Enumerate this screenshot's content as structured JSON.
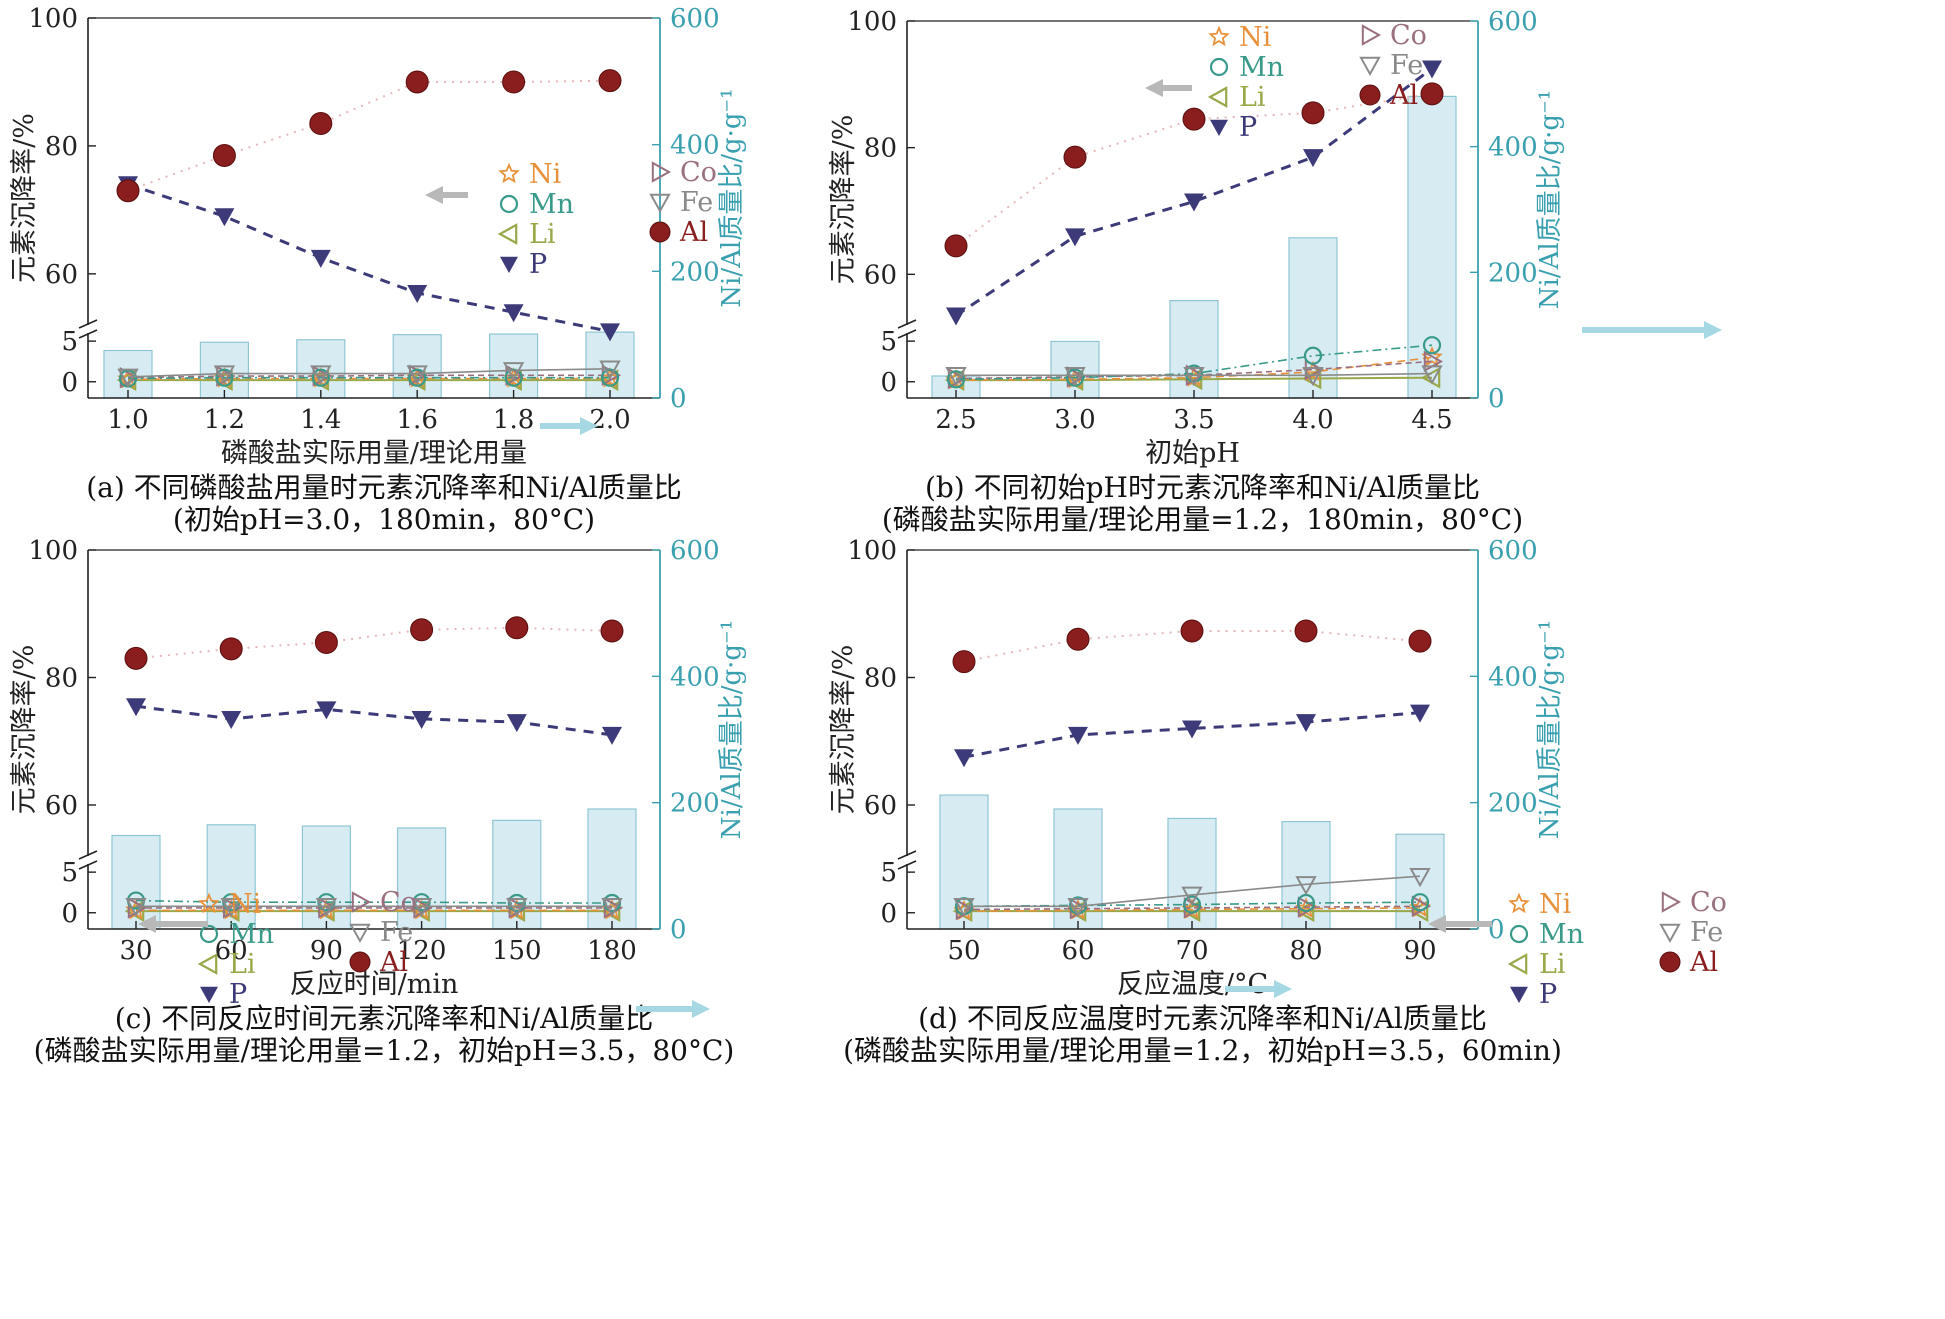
{
  "figure": {
    "colors": {
      "Ni": "#e8913a",
      "Mn": "#3a9a8a",
      "Li": "#9aa84a",
      "P": "#3c3a78",
      "Co": "#9a7080",
      "Fe": "#8a8a8a",
      "Al": "#8a1e1e",
      "bar_fill": "#d7ecf2",
      "bar_stroke": "#8fc6d4",
      "axis": "#222222",
      "right_axis": "#3aa0b0"
    },
    "legend_labels": [
      "Ni",
      "Mn",
      "Li",
      "P",
      "Co",
      "Fe",
      "Al"
    ]
  },
  "chart_data": [
    {
      "panel": "a",
      "type": "line+bar",
      "xlabel": "磷酸盐实际用量/理论用量",
      "ylabel": "元素沉降率/%",
      "ylabel_right": "Ni/Al质量比/g·g⁻¹",
      "caption1": "(a) 不同磷酸盐用量时元素沉降率和Ni/Al质量比",
      "caption2": "(初始pH=3.0，180min，80°C)",
      "x_tick_labels": [
        "1.0",
        "1.2",
        "1.4",
        "1.6",
        "1.8",
        "2.0"
      ],
      "y_ticks_upper": [
        60,
        80,
        100
      ],
      "y_ticks_lower": [
        0,
        5
      ],
      "y_ticks_right": [
        0,
        200,
        400,
        600
      ],
      "ylim_upper": [
        52,
        100
      ],
      "ylim_lower": [
        -2,
        6
      ],
      "ylim_right": [
        0,
        600
      ],
      "series": [
        {
          "name": "Al",
          "values": [
            73.0,
            78.5,
            83.5,
            90.0,
            90.0,
            90.2
          ]
        },
        {
          "name": "P",
          "values": [
            74.0,
            69.0,
            62.5,
            57.0,
            54.0,
            51.0
          ]
        },
        {
          "name": "Ni",
          "values": [
            0.3,
            0.4,
            0.4,
            0.4,
            0.4,
            0.4
          ]
        },
        {
          "name": "Mn",
          "values": [
            0.4,
            0.5,
            0.5,
            0.5,
            0.5,
            0.5
          ]
        },
        {
          "name": "Li",
          "values": [
            0.2,
            0.2,
            0.2,
            0.2,
            0.2,
            0.2
          ]
        },
        {
          "name": "Co",
          "values": [
            0.5,
            0.7,
            0.7,
            0.8,
            0.8,
            0.8
          ]
        },
        {
          "name": "Fe",
          "values": [
            0.6,
            1.0,
            1.0,
            1.0,
            1.4,
            1.6
          ]
        }
      ],
      "bars": [
        75,
        88,
        92,
        100,
        101,
        104
      ]
    },
    {
      "panel": "b",
      "type": "line+bar",
      "xlabel": "初始pH",
      "ylabel": "元素沉降率/%",
      "ylabel_right": "Ni/Al质量比/g·g⁻¹",
      "caption1": "(b) 不同初始pH时元素沉降率和Ni/Al质量比",
      "caption2": "(磷酸盐实际用量/理论用量=1.2，180min，80°C)",
      "x_tick_labels": [
        "2.5",
        "3.0",
        "3.5",
        "4.0",
        "4.5"
      ],
      "y_ticks_upper": [
        60,
        80,
        100
      ],
      "y_ticks_lower": [
        0,
        5
      ],
      "y_ticks_right": [
        0,
        200,
        400,
        600
      ],
      "ylim_upper": [
        52,
        100
      ],
      "ylim_lower": [
        -2,
        6
      ],
      "ylim_right": [
        0,
        600
      ],
      "series": [
        {
          "name": "Al",
          "values": [
            64.5,
            78.5,
            84.5,
            85.5,
            88.5
          ]
        },
        {
          "name": "P",
          "values": [
            53.5,
            66.0,
            71.5,
            78.5,
            92.5
          ]
        },
        {
          "name": "Ni",
          "values": [
            0.2,
            0.3,
            0.5,
            1.2,
            3.0
          ]
        },
        {
          "name": "Mn",
          "values": [
            0.3,
            0.5,
            1.0,
            3.2,
            4.5
          ]
        },
        {
          "name": "Li",
          "values": [
            0.2,
            0.2,
            0.3,
            0.4,
            0.5
          ]
        },
        {
          "name": "Co",
          "values": [
            0.4,
            0.6,
            0.8,
            1.5,
            2.5
          ]
        },
        {
          "name": "Fe",
          "values": [
            0.8,
            0.8,
            0.8,
            0.8,
            1.0
          ]
        }
      ],
      "bars": [
        35,
        90,
        155,
        255,
        480
      ]
    },
    {
      "panel": "c",
      "type": "line+bar",
      "xlabel": "反应时间/min",
      "ylabel": "元素沉降率/%",
      "ylabel_right": "Ni/Al质量比/g·g⁻¹",
      "caption1": "(c) 不同反应时间元素沉降率和Ni/Al质量比",
      "caption2": "(磷酸盐实际用量/理论用量=1.2，初始pH=3.5，80°C)",
      "x_tick_labels": [
        "30",
        "60",
        "90",
        "120",
        "150",
        "180"
      ],
      "y_ticks_upper": [
        60,
        80,
        100
      ],
      "y_ticks_lower": [
        0,
        5
      ],
      "y_ticks_right": [
        0,
        200,
        400,
        600
      ],
      "ylim_upper": [
        52,
        100
      ],
      "ylim_lower": [
        -2,
        6
      ],
      "ylim_right": [
        0,
        600
      ],
      "series": [
        {
          "name": "Al",
          "values": [
            83.0,
            84.5,
            85.5,
            87.5,
            87.8,
            87.3
          ]
        },
        {
          "name": "P",
          "values": [
            75.5,
            73.5,
            75.0,
            73.5,
            73.0,
            71.0
          ]
        },
        {
          "name": "Ni",
          "values": [
            0.3,
            0.3,
            0.3,
            0.3,
            0.3,
            0.3
          ]
        },
        {
          "name": "Mn",
          "values": [
            1.5,
            1.3,
            1.3,
            1.3,
            1.2,
            1.2
          ]
        },
        {
          "name": "Li",
          "values": [
            0.2,
            0.2,
            0.2,
            0.2,
            0.2,
            0.2
          ]
        },
        {
          "name": "Co",
          "values": [
            0.6,
            0.6,
            0.6,
            0.6,
            0.6,
            0.6
          ]
        },
        {
          "name": "Fe",
          "values": [
            0.8,
            0.8,
            0.8,
            0.8,
            0.8,
            0.8
          ]
        }
      ],
      "bars": [
        148,
        165,
        163,
        160,
        172,
        190
      ]
    },
    {
      "panel": "d",
      "type": "line+bar",
      "xlabel": "反应温度/°C",
      "ylabel": "元素沉降率/%",
      "ylabel_right": "Ni/Al质量比/g·g⁻¹",
      "caption1": "(d) 不同反应温度时元素沉降率和Ni/Al质量比",
      "caption2": "(磷酸盐实际用量/理论用量=1.2，初始pH=3.5，60min)",
      "x_tick_labels": [
        "50",
        "60",
        "70",
        "80",
        "90"
      ],
      "y_ticks_upper": [
        60,
        80,
        100
      ],
      "y_ticks_lower": [
        0,
        5
      ],
      "y_ticks_right": [
        0,
        200,
        400,
        600
      ],
      "ylim_upper": [
        52,
        100
      ],
      "ylim_lower": [
        -2,
        6
      ],
      "ylim_right": [
        0,
        600
      ],
      "series": [
        {
          "name": "Al",
          "values": [
            82.5,
            86.0,
            87.3,
            87.3,
            85.7
          ]
        },
        {
          "name": "P",
          "values": [
            67.5,
            71.0,
            72.0,
            73.0,
            74.5
          ]
        },
        {
          "name": "Ni",
          "values": [
            0.2,
            0.3,
            0.4,
            0.5,
            0.6
          ]
        },
        {
          "name": "Mn",
          "values": [
            0.8,
            0.9,
            1.0,
            1.2,
            1.3
          ]
        },
        {
          "name": "Li",
          "values": [
            0.2,
            0.2,
            0.2,
            0.2,
            0.2
          ]
        },
        {
          "name": "Co",
          "values": [
            0.4,
            0.5,
            0.6,
            0.7,
            0.8
          ]
        },
        {
          "name": "Fe",
          "values": [
            0.8,
            0.8,
            2.2,
            3.5,
            4.5
          ]
        }
      ],
      "bars": [
        212,
        190,
        175,
        170,
        150
      ]
    }
  ]
}
